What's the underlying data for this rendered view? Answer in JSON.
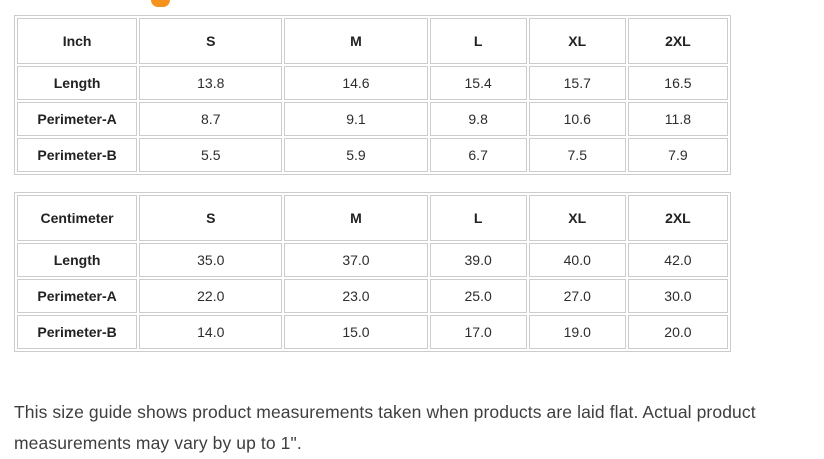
{
  "page": {
    "accent_color": "#f6921e",
    "border_color": "#cccccc"
  },
  "tables": [
    {
      "unit_label": "Inch",
      "sizes": [
        "S",
        "M",
        "L",
        "XL",
        "2XL"
      ],
      "rows": [
        {
          "label": "Length",
          "values": [
            "13.8",
            "14.6",
            "15.4",
            "15.7",
            "16.5"
          ]
        },
        {
          "label": "Perimeter-A",
          "values": [
            "8.7",
            "9.1",
            "9.8",
            "10.6",
            "11.8"
          ]
        },
        {
          "label": "Perimeter-B",
          "values": [
            "5.5",
            "5.9",
            "6.7",
            "7.5",
            "7.9"
          ]
        }
      ]
    },
    {
      "unit_label": "Centimeter",
      "sizes": [
        "S",
        "M",
        "L",
        "XL",
        "2XL"
      ],
      "rows": [
        {
          "label": "Length",
          "values": [
            "35.0",
            "37.0",
            "39.0",
            "40.0",
            "42.0"
          ]
        },
        {
          "label": "Perimeter-A",
          "values": [
            "22.0",
            "23.0",
            "25.0",
            "27.0",
            "30.0"
          ]
        },
        {
          "label": "Perimeter-B",
          "values": [
            "14.0",
            "15.0",
            "17.0",
            "19.0",
            "20.0"
          ]
        }
      ]
    }
  ],
  "footnote": {
    "line1": "This size guide shows product measurements taken when products are laid flat. Actual product",
    "line2": "measurements may vary by up to 1\"."
  }
}
